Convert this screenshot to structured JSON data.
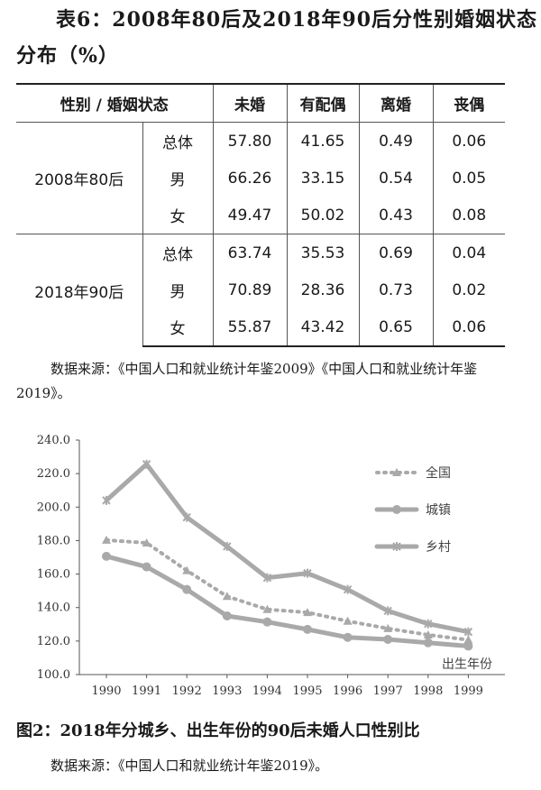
{
  "table": {
    "title_line1": "表6：2008年80后及2018年90后分性别婚姻状态",
    "title_line2": "分布（%）",
    "headers": [
      "性别 / 婚姻状态",
      "未婚",
      "有配偶",
      "离婚",
      "丧偶"
    ],
    "groups": [
      {
        "label": "2008年80后",
        "rows": [
          {
            "sex": "总体",
            "values": [
              "57.80",
              "41.65",
              "0.49",
              "0.06"
            ]
          },
          {
            "sex": "男",
            "values": [
              "66.26",
              "33.15",
              "0.54",
              "0.05"
            ]
          },
          {
            "sex": "女",
            "values": [
              "49.47",
              "50.02",
              "0.43",
              "0.08"
            ]
          }
        ]
      },
      {
        "label": "2018年90后",
        "rows": [
          {
            "sex": "总体",
            "values": [
              "63.74",
              "35.53",
              "0.69",
              "0.04"
            ]
          },
          {
            "sex": "男",
            "values": [
              "70.89",
              "28.36",
              "0.73",
              "0.02"
            ]
          },
          {
            "sex": "女",
            "values": [
              "55.87",
              "43.42",
              "0.65",
              "0.06"
            ]
          }
        ]
      }
    ],
    "source": "数据来源：《中国人口和就业统计年鉴2009》《中国人口和就业统计年鉴2019》。"
  },
  "chart_data": {
    "type": "line",
    "title": "图2：2018年分城乡、出生年份的90后未婚人口性别比",
    "xlabel": "出生年份",
    "ylabel": "",
    "x": [
      1990,
      1991,
      1992,
      1993,
      1994,
      1995,
      1996,
      1997,
      1998,
      1999
    ],
    "ylim": [
      100.0,
      240.0
    ],
    "yticks": [
      "100.0",
      "120.0",
      "140.0",
      "160.0",
      "180.0",
      "200.0",
      "220.0",
      "240.0"
    ],
    "xticks": [
      "1990",
      "1991",
      "1992",
      "1993",
      "1994",
      "1995",
      "1996",
      "1997",
      "1998",
      "1999"
    ],
    "grid": false,
    "legend": "top-right inside",
    "series": [
      {
        "name": "全国",
        "values": [
          180.3,
          178.6,
          162.1,
          146.7,
          138.9,
          137.1,
          131.9,
          127.5,
          123.7,
          120.7
        ]
      },
      {
        "name": "城镇",
        "values": [
          170.6,
          164.3,
          150.8,
          135.0,
          131.4,
          127.0,
          122.2,
          121.0,
          119.0,
          117.0
        ]
      },
      {
        "name": "乡村",
        "values": [
          204.0,
          225.6,
          193.9,
          176.5,
          157.8,
          160.5,
          150.8,
          138.0,
          130.3,
          125.5
        ]
      }
    ],
    "colors": {
      "series": "#a9a9a9",
      "axis": "#555555",
      "text": "#333333"
    }
  },
  "chart_source": "数据来源：《中国人口和就业统计年鉴2019》。"
}
